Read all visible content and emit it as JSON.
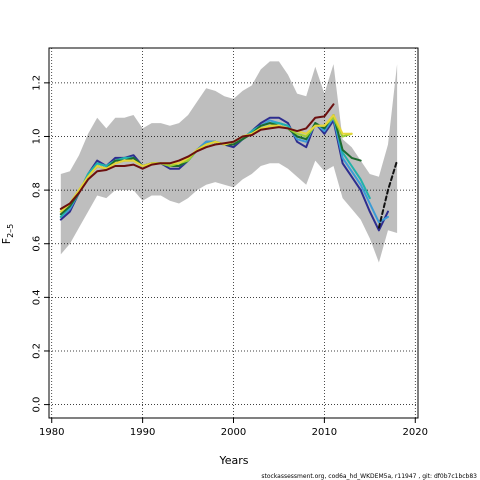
{
  "chart_data": {
    "type": "line",
    "xlabel": "Years",
    "ylabel_base": "F",
    "ylabel_sub": "2–5",
    "xlim": [
      1979.7,
      2020.3
    ],
    "ylim": [
      -0.05,
      1.33
    ],
    "x_ticks": [
      1980,
      1990,
      2000,
      2010,
      2020
    ],
    "y_ticks": [
      0.0,
      0.2,
      0.4,
      0.6,
      0.8,
      1.0,
      1.2
    ],
    "grid": "dotted",
    "footnote": "stockassessment.org, cod6a_hd_WKDEM5a, r11947 , git: df0b7c1bcb83",
    "band": {
      "name": "confidence-band",
      "color": "#bebebe",
      "x": [
        1981,
        1982,
        1983,
        1984,
        1985,
        1986,
        1987,
        1988,
        1989,
        1990,
        1991,
        1992,
        1993,
        1994,
        1995,
        1996,
        1997,
        1998,
        1999,
        2000,
        2001,
        2002,
        2003,
        2004,
        2005,
        2006,
        2007,
        2008,
        2009,
        2010,
        2011,
        2012,
        2013,
        2014,
        2015,
        2016,
        2017,
        2018
      ],
      "upper": [
        0.86,
        0.87,
        0.93,
        1.01,
        1.07,
        1.03,
        1.07,
        1.07,
        1.08,
        1.03,
        1.05,
        1.05,
        1.04,
        1.05,
        1.08,
        1.13,
        1.18,
        1.17,
        1.15,
        1.14,
        1.17,
        1.19,
        1.25,
        1.28,
        1.28,
        1.23,
        1.16,
        1.15,
        1.26,
        1.16,
        1.27,
        0.99,
        0.96,
        0.91,
        0.86,
        0.85,
        0.97,
        1.27
      ],
      "lower": [
        0.56,
        0.6,
        0.66,
        0.72,
        0.78,
        0.77,
        0.8,
        0.8,
        0.8,
        0.76,
        0.78,
        0.78,
        0.76,
        0.75,
        0.77,
        0.8,
        0.82,
        0.83,
        0.82,
        0.81,
        0.84,
        0.86,
        0.89,
        0.9,
        0.9,
        0.88,
        0.85,
        0.82,
        0.91,
        0.87,
        0.89,
        0.77,
        0.73,
        0.69,
        0.62,
        0.53,
        0.65,
        0.64
      ]
    },
    "series": [
      {
        "color": "#2d2d8f",
        "x": [
          1981,
          1982,
          1983,
          1984,
          1985,
          1986,
          1987,
          1988,
          1989,
          1990,
          1991,
          1992,
          1993,
          1994,
          1995,
          1996,
          1997,
          1998,
          1999,
          2000,
          2001,
          2002,
          2003,
          2004,
          2005,
          2006,
          2007,
          2008,
          2009,
          2010,
          2011,
          2012,
          2013,
          2014,
          2015,
          2016,
          2017
        ],
        "values": [
          0.69,
          0.72,
          0.79,
          0.86,
          0.91,
          0.89,
          0.92,
          0.92,
          0.93,
          0.89,
          0.9,
          0.9,
          0.88,
          0.88,
          0.91,
          0.95,
          0.98,
          0.98,
          0.97,
          0.96,
          0.99,
          1.02,
          1.05,
          1.07,
          1.07,
          1.05,
          0.98,
          0.96,
          1.05,
          1.01,
          1.06,
          0.9,
          0.85,
          0.8,
          0.72,
          0.65,
          0.72
        ]
      },
      {
        "color": "#3b9bd6",
        "x": [
          1981,
          1982,
          1983,
          1984,
          1985,
          1986,
          1987,
          1988,
          1989,
          1990,
          1991,
          1992,
          1993,
          1994,
          1995,
          1996,
          1997,
          1998,
          1999,
          2000,
          2001,
          2002,
          2003,
          2004,
          2005,
          2006,
          2007,
          2008,
          2009,
          2010,
          2011,
          2012,
          2013,
          2014,
          2015,
          2016,
          2017
        ],
        "values": [
          0.7,
          0.73,
          0.79,
          0.86,
          0.9,
          0.89,
          0.91,
          0.92,
          0.92,
          0.89,
          0.9,
          0.9,
          0.89,
          0.89,
          0.91,
          0.95,
          0.98,
          0.98,
          0.97,
          0.97,
          0.99,
          1.02,
          1.04,
          1.06,
          1.05,
          1.04,
          0.99,
          0.98,
          1.05,
          1.02,
          1.07,
          0.92,
          0.87,
          0.82,
          0.75,
          0.68,
          0.7
        ]
      },
      {
        "color": "#20b2aa",
        "x": [
          1981,
          1982,
          1983,
          1984,
          1985,
          1986,
          1987,
          1988,
          1989,
          1990,
          1991,
          1992,
          1993,
          1994,
          1995,
          1996,
          1997,
          1998,
          1999,
          2000,
          2001,
          2002,
          2003,
          2004,
          2005,
          2006,
          2007,
          2008,
          2009,
          2010,
          2011,
          2012,
          2013,
          2014,
          2015
        ],
        "values": [
          0.7,
          0.74,
          0.79,
          0.86,
          0.9,
          0.89,
          0.91,
          0.92,
          0.92,
          0.89,
          0.9,
          0.9,
          0.89,
          0.89,
          0.91,
          0.95,
          0.97,
          0.98,
          0.97,
          0.97,
          0.99,
          1.02,
          1.04,
          1.05,
          1.05,
          1.04,
          1.0,
          0.99,
          1.05,
          1.03,
          1.08,
          0.94,
          0.89,
          0.84,
          0.77
        ]
      },
      {
        "color": "#1e6b2e",
        "x": [
          1981,
          1982,
          1983,
          1984,
          1985,
          1986,
          1987,
          1988,
          1989,
          1990,
          1991,
          1992,
          1993,
          1994,
          1995,
          1996,
          1997,
          1998,
          1999,
          2000,
          2001,
          2002,
          2003,
          2004,
          2005,
          2006,
          2007,
          2008,
          2009,
          2010,
          2011,
          2012,
          2013,
          2014
        ],
        "values": [
          0.71,
          0.74,
          0.79,
          0.85,
          0.89,
          0.88,
          0.91,
          0.91,
          0.92,
          0.89,
          0.9,
          0.9,
          0.89,
          0.89,
          0.91,
          0.95,
          0.97,
          0.98,
          0.97,
          0.97,
          0.99,
          1.01,
          1.04,
          1.05,
          1.04,
          1.03,
          1.0,
          0.99,
          1.05,
          1.03,
          1.08,
          0.95,
          0.92,
          0.91
        ]
      },
      {
        "color": "#9acd32",
        "x": [
          1981,
          1982,
          1983,
          1984,
          1985,
          1986,
          1987,
          1988,
          1989,
          1990,
          1991,
          1992,
          1993,
          1994,
          1995,
          1996,
          1997,
          1998,
          1999,
          2000,
          2001,
          2002,
          2003,
          2004,
          2005,
          2006,
          2007,
          2008,
          2009,
          2010,
          2011,
          2012,
          2013
        ],
        "values": [
          0.72,
          0.75,
          0.8,
          0.85,
          0.89,
          0.88,
          0.9,
          0.91,
          0.91,
          0.89,
          0.9,
          0.9,
          0.89,
          0.9,
          0.91,
          0.95,
          0.97,
          0.98,
          0.97,
          0.98,
          1.0,
          1.01,
          1.03,
          1.04,
          1.04,
          1.03,
          1.01,
          1.0,
          1.04,
          1.04,
          1.07,
          1.0,
          1.01
        ]
      },
      {
        "color": "#e5d43a",
        "x": [
          1981,
          1982,
          1983,
          1984,
          1985,
          1986,
          1987,
          1988,
          1989,
          1990,
          1991,
          1992,
          1993,
          1994,
          1995,
          1996,
          1997,
          1998,
          1999,
          2000,
          2001,
          2002,
          2003,
          2004,
          2005,
          2006,
          2007,
          2008,
          2009,
          2010,
          2011,
          2012,
          2013
        ],
        "values": [
          0.72,
          0.75,
          0.8,
          0.85,
          0.89,
          0.88,
          0.9,
          0.91,
          0.91,
          0.89,
          0.9,
          0.9,
          0.9,
          0.9,
          0.92,
          0.95,
          0.97,
          0.98,
          0.97,
          0.98,
          1.0,
          1.01,
          1.03,
          1.04,
          1.04,
          1.03,
          1.02,
          1.01,
          1.04,
          1.04,
          1.08,
          1.01,
          1.01
        ]
      },
      {
        "color": "#6b0f0f",
        "x": [
          1981,
          1982,
          1983,
          1984,
          1985,
          1986,
          1987,
          1988,
          1989,
          1990,
          1991,
          1992,
          1993,
          1994,
          1995,
          1996,
          1997,
          1998,
          1999,
          2000,
          2001,
          2002,
          2003,
          2004,
          2005,
          2006,
          2007,
          2008,
          2009,
          2010,
          2011
        ],
        "values": [
          0.73,
          0.75,
          0.79,
          0.84,
          0.87,
          0.875,
          0.89,
          0.89,
          0.895,
          0.88,
          0.895,
          0.9,
          0.9,
          0.91,
          0.925,
          0.945,
          0.96,
          0.97,
          0.975,
          0.98,
          1.0,
          1.005,
          1.025,
          1.03,
          1.035,
          1.03,
          1.02,
          1.03,
          1.07,
          1.075,
          1.12
        ]
      },
      {
        "color": "#111111",
        "dashed": true,
        "x": [
          2016,
          2017,
          2018
        ],
        "values": [
          0.66,
          0.8,
          0.91
        ]
      }
    ]
  }
}
